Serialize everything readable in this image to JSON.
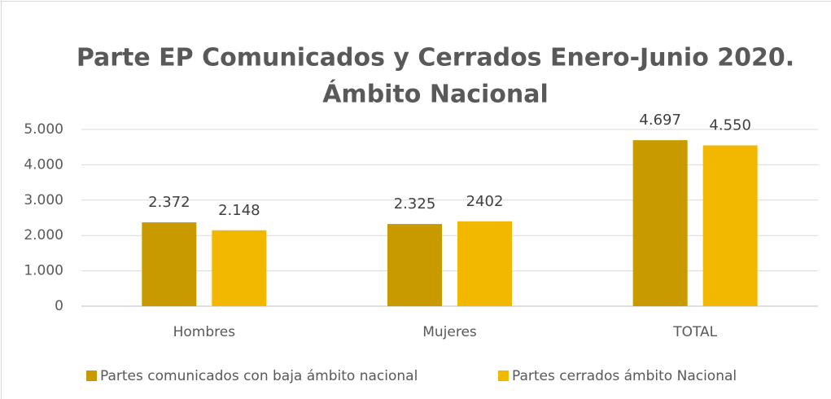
{
  "chart_data": {
    "type": "bar",
    "title": [
      "Parte EP Comunicados y Cerrados Enero-Junio 2020.",
      "Ámbito Nacional"
    ],
    "categories": [
      "Hombres",
      "Mujeres",
      "TOTAL"
    ],
    "series": [
      {
        "name": "Partes comunicados con baja ámbito nacional",
        "color": "#c89a00",
        "values": [
          2372,
          2325,
          4697
        ],
        "value_labels": [
          "2.372",
          "2.325",
          "4.697"
        ]
      },
      {
        "name": "Partes cerrados ámbito Nacional",
        "color": "#f2b800",
        "values": [
          2148,
          2402,
          4550
        ],
        "value_labels": [
          "2.148",
          "2402",
          "4.550"
        ]
      }
    ],
    "ylim": [
      0,
      5000
    ],
    "yticks": [
      0,
      {
        "value": 1000,
        "label": "1.000"
      },
      {
        "value": 2000,
        "label": "2.000"
      },
      {
        "value": 3000,
        "label": "3.000"
      },
      {
        "value": 4000,
        "label": "4.000"
      },
      {
        "value": 5000,
        "label": "5.000"
      }
    ],
    "grid": true,
    "legend": "bottom"
  }
}
